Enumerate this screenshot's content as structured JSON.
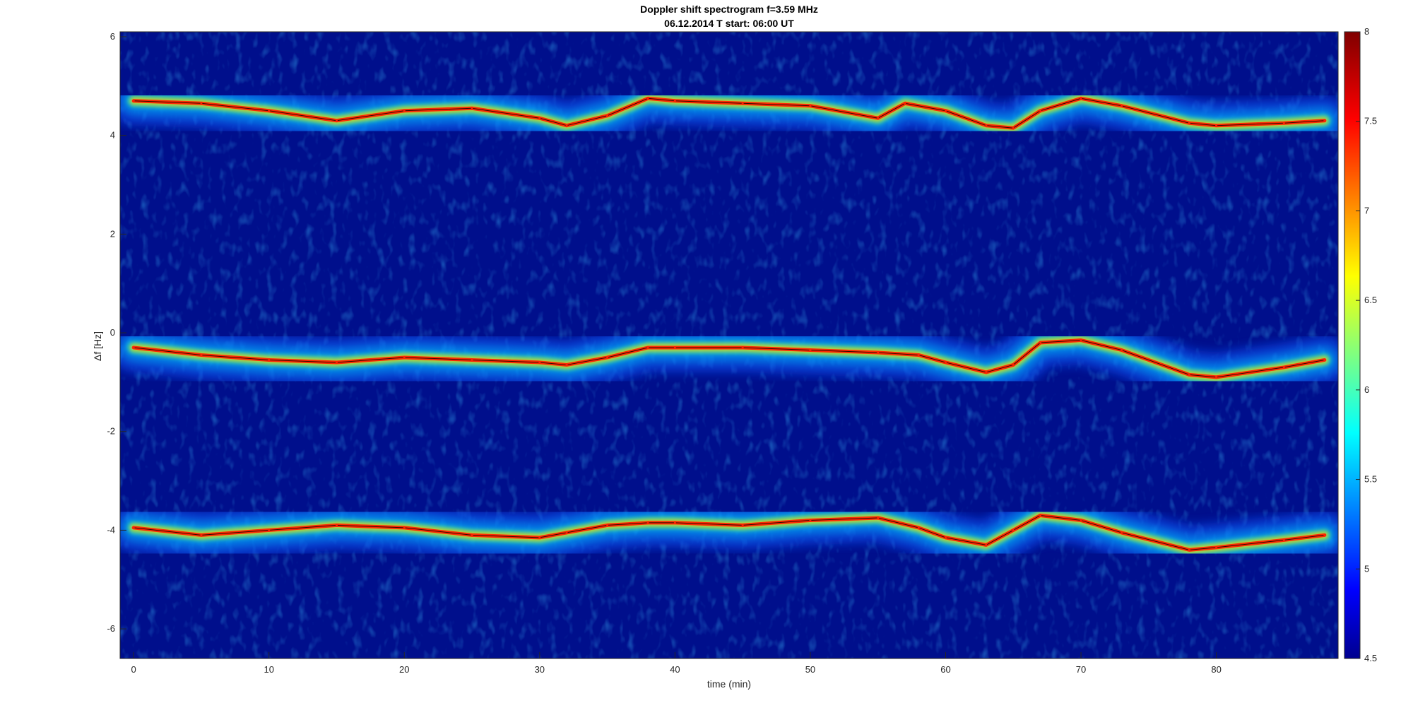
{
  "chart_data": {
    "type": "heatmap",
    "title": "Doppler shift spectrogram f=3.59 MHz",
    "subtitle": "06.12.2014   T start: 06:00 UT",
    "xlabel": "time (min)",
    "ylabel": "Δf [Hz]",
    "xlim": [
      -1,
      89
    ],
    "ylim": [
      -6.6,
      6.1
    ],
    "xticks": [
      0,
      10,
      20,
      30,
      40,
      50,
      60,
      70,
      80
    ],
    "yticks": [
      6,
      4,
      2,
      0,
      -2,
      -4,
      -6
    ],
    "colormap": "jet",
    "colorbar": {
      "range": [
        4.5,
        8
      ],
      "ticks": [
        8,
        7.5,
        7,
        6.5,
        6,
        5.5,
        5,
        4.5
      ]
    },
    "colors": {
      "background": "#000f8c",
      "peak": "#ff2000",
      "trace": "#000000"
    },
    "series": [
      {
        "x": [
          0,
          5,
          10,
          15,
          20,
          25,
          30,
          32,
          35,
          38,
          40,
          45,
          50,
          55,
          57,
          60,
          63,
          65,
          67,
          70,
          73,
          78,
          80,
          85,
          88
        ],
        "y": [
          4.7,
          4.65,
          4.5,
          4.3,
          4.5,
          4.55,
          4.35,
          4.2,
          4.4,
          4.75,
          4.7,
          4.65,
          4.6,
          4.35,
          4.65,
          4.5,
          4.2,
          4.15,
          4.5,
          4.75,
          4.6,
          4.25,
          4.2,
          4.25,
          4.3
        ]
      },
      {
        "x": [
          0,
          5,
          10,
          15,
          20,
          25,
          30,
          32,
          35,
          38,
          40,
          45,
          50,
          55,
          58,
          60,
          63,
          65,
          67,
          70,
          73,
          78,
          80,
          85,
          88
        ],
        "y": [
          -0.3,
          -0.45,
          -0.55,
          -0.6,
          -0.5,
          -0.55,
          -0.6,
          -0.65,
          -0.5,
          -0.3,
          -0.3,
          -0.3,
          -0.35,
          -0.4,
          -0.45,
          -0.6,
          -0.8,
          -0.65,
          -0.2,
          -0.15,
          -0.35,
          -0.85,
          -0.9,
          -0.7,
          -0.55
        ]
      },
      {
        "x": [
          0,
          5,
          10,
          15,
          20,
          25,
          30,
          32,
          35,
          38,
          40,
          45,
          50,
          55,
          58,
          60,
          63,
          65,
          67,
          70,
          73,
          78,
          80,
          85,
          88
        ],
        "y": [
          -3.95,
          -4.1,
          -4.0,
          -3.9,
          -3.95,
          -4.1,
          -4.15,
          -4.05,
          -3.9,
          -3.85,
          -3.85,
          -3.9,
          -3.8,
          -3.75,
          -3.95,
          -4.15,
          -4.3,
          -4.0,
          -3.7,
          -3.8,
          -4.05,
          -4.4,
          -4.35,
          -4.2,
          -4.1
        ]
      }
    ]
  }
}
